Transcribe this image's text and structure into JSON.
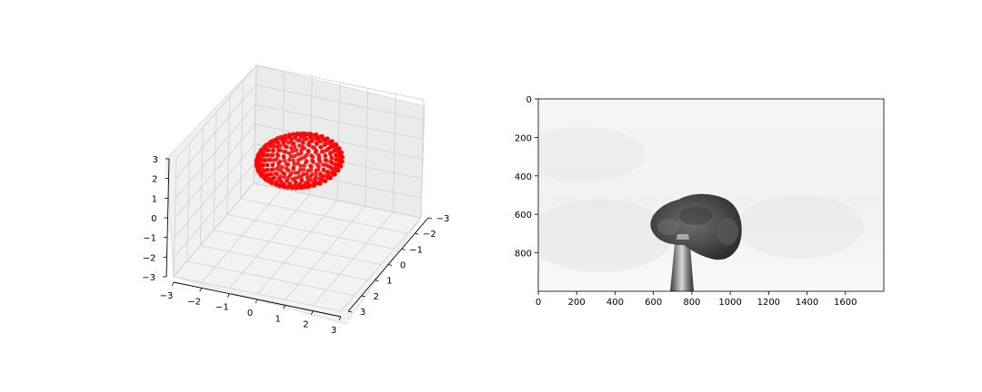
{
  "chart_data": [
    {
      "type": "scatter3d",
      "shape": "flattened ellipsoid point cloud",
      "marker_color": "#ff0000",
      "center": [
        0,
        0,
        1.4
      ],
      "radii": [
        1.4,
        1.4,
        0.75
      ],
      "xlim": [
        -3,
        3
      ],
      "ylim": [
        -3,
        3
      ],
      "zlim": [
        -3,
        3
      ],
      "xticks": [
        "−3",
        "−2",
        "−1",
        "0",
        "1",
        "2",
        "3"
      ],
      "yticks": [
        "−3",
        "−2",
        "−1",
        "0",
        "1",
        "2",
        "3"
      ],
      "zticks": [
        "−3",
        "−2",
        "−1",
        "0",
        "1",
        "2",
        "3"
      ],
      "grid": true,
      "pane_color": "#f2f2f2"
    },
    {
      "type": "image",
      "content": "grayscale photo of a dark seed on a metal pin against a light background",
      "xlim": [
        0,
        1800
      ],
      "ylim": [
        1000,
        0
      ],
      "xticks": [
        "0",
        "200",
        "400",
        "600",
        "800",
        "1000",
        "1200",
        "1400",
        "1600"
      ],
      "yticks": [
        "0",
        "200",
        "400",
        "600",
        "800"
      ]
    }
  ]
}
